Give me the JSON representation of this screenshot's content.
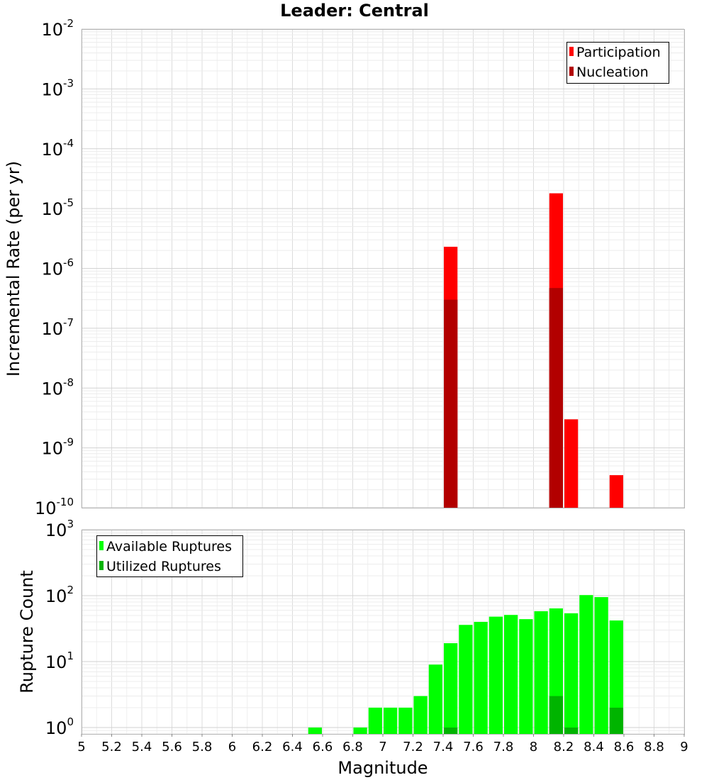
{
  "chart_data": [
    {
      "type": "bar",
      "title": "Leader: Central",
      "ylabel": "Incremental Rate (per yr)",
      "y_scale": "log",
      "ylim": [
        1e-10,
        0.01
      ],
      "xlim": [
        5,
        9
      ],
      "grid": true,
      "legend_position": "top-right",
      "ytick_labels": [
        {
          "base": "10",
          "exp": "-10"
        },
        {
          "base": "10",
          "exp": "-9"
        },
        {
          "base": "10",
          "exp": "-8"
        },
        {
          "base": "10",
          "exp": "-7"
        },
        {
          "base": "10",
          "exp": "-6"
        },
        {
          "base": "10",
          "exp": "-5"
        },
        {
          "base": "10",
          "exp": "-4"
        },
        {
          "base": "10",
          "exp": "-3"
        },
        {
          "base": "10",
          "exp": "-2"
        }
      ],
      "series": [
        {
          "name": "Participation",
          "color": "#ff0000",
          "x": [
            7.45,
            8.15,
            8.25,
            8.55
          ],
          "values": [
            2.3e-06,
            1.8e-05,
            3e-09,
            3.5e-10
          ]
        },
        {
          "name": "Nucleation",
          "color": "#b20000",
          "x": [
            7.45,
            8.15
          ],
          "values": [
            3e-07,
            4.7e-07
          ]
        }
      ]
    },
    {
      "type": "bar",
      "ylabel": "Rupture Count",
      "xlabel": "Magnitude",
      "y_scale": "log",
      "ylim": [
        0.8,
        1000
      ],
      "xlim": [
        5,
        9
      ],
      "grid": true,
      "legend_position": "top-left",
      "xtick_labels": [
        "5",
        "5.2",
        "5.4",
        "5.6",
        "5.8",
        "6",
        "6.2",
        "6.4",
        "6.6",
        "6.8",
        "7",
        "7.2",
        "7.4",
        "7.6",
        "7.8",
        "8",
        "8.2",
        "8.4",
        "8.6",
        "8.8",
        "9"
      ],
      "ytick_labels": [
        {
          "base": "10",
          "exp": "0"
        },
        {
          "base": "10",
          "exp": "1"
        },
        {
          "base": "10",
          "exp": "2"
        },
        {
          "base": "10",
          "exp": "3"
        }
      ],
      "series": [
        {
          "name": "Available Ruptures",
          "color": "#00ff00",
          "x": [
            6.55,
            6.85,
            6.95,
            7.05,
            7.15,
            7.25,
            7.35,
            7.45,
            7.55,
            7.65,
            7.75,
            7.85,
            7.95,
            8.05,
            8.15,
            8.25,
            8.35,
            8.45,
            8.55
          ],
          "values": [
            1,
            1,
            2,
            2,
            2,
            3,
            9,
            19,
            36,
            40,
            48,
            51,
            44,
            58,
            64,
            54,
            102,
            95,
            42
          ]
        },
        {
          "name": "Utilized Ruptures",
          "color": "#00b400",
          "x": [
            7.45,
            8.15,
            8.25,
            8.55
          ],
          "values": [
            1,
            3,
            1,
            2
          ]
        }
      ]
    }
  ]
}
